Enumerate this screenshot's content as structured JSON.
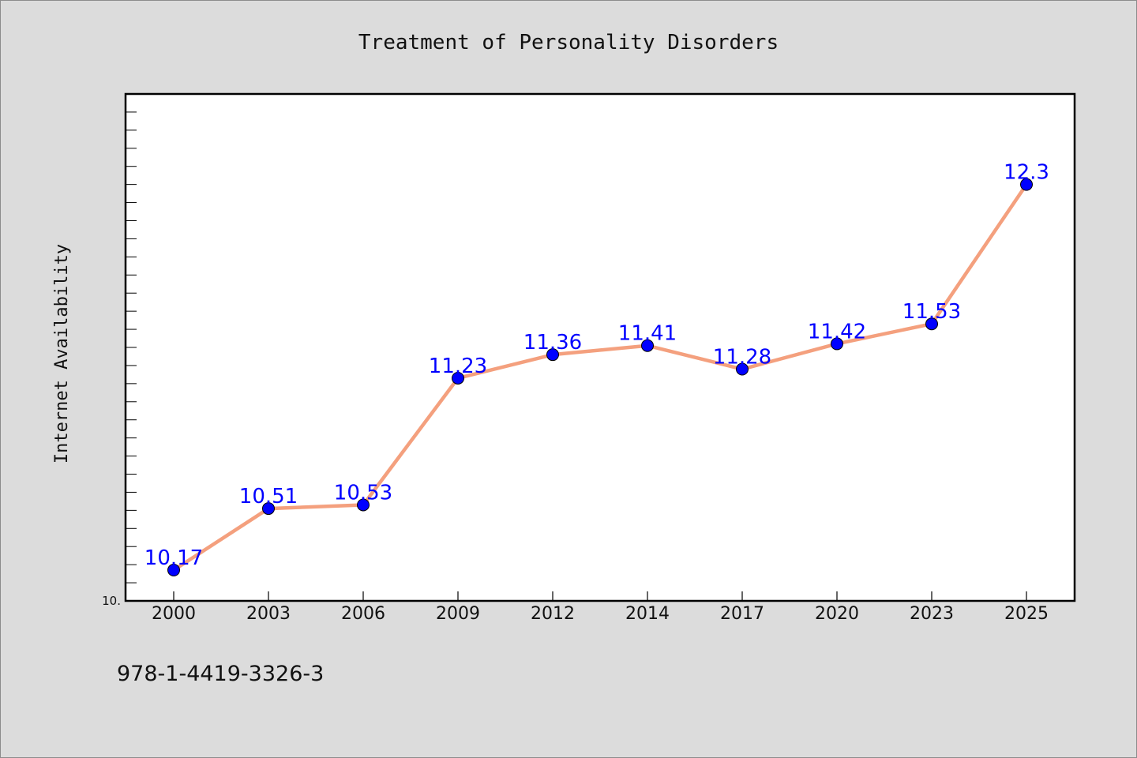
{
  "chart_data": {
    "type": "line",
    "title": "Treatment of Personality Disorders",
    "xlabel": "",
    "ylabel": "Internet Availability",
    "categories": [
      "2000",
      "2003",
      "2006",
      "2009",
      "2012",
      "2014",
      "2017",
      "2020",
      "2023",
      "2025"
    ],
    "series": [
      {
        "values": [
          10.17,
          10.51,
          10.53,
          11.23,
          11.36,
          11.41,
          11.28,
          11.42,
          11.53,
          12.3
        ]
      }
    ],
    "ylim": [
      10.0,
      12.8
    ],
    "y_tick_labels": [
      "10."
    ],
    "grid": false,
    "legend": "none",
    "colors": {
      "line": "#f4a07e",
      "marker": "#0000ff",
      "data_label": "#0000ff",
      "plot_background": "#ffffff",
      "page_background": "#dcdcdc"
    }
  },
  "footer": {
    "isbn": "978-1-4419-3326-3"
  }
}
